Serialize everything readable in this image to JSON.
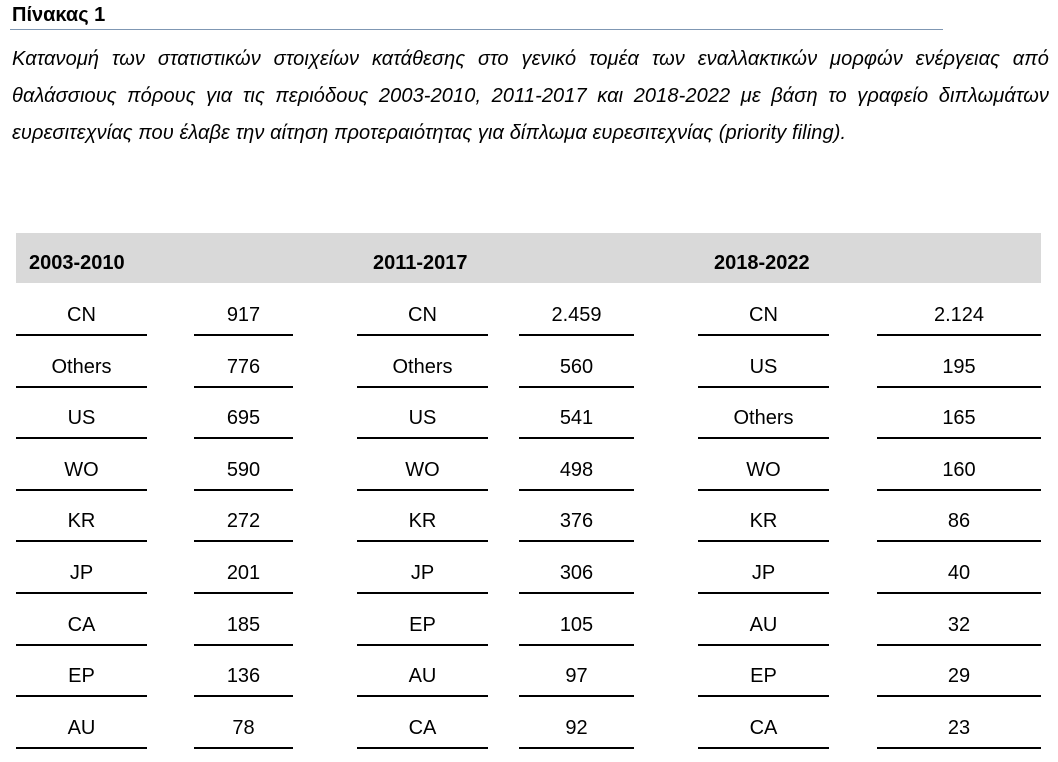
{
  "title": "Πίνακας 1",
  "caption": "Κατανομή των στατιστικών στοιχείων κατάθεσης στο γενικό τομέα των εναλλακτικών μορφών ενέργειας από θαλάσσιους πόρους για τις περιόδους 2003-2010, 2011-2017 και 2018-2022 με βάση το γραφείο διπλωμάτων ευρεσιτεχνίας που έλαβε την αίτηση προτεραιότητας για δίπλωμα ευρεσιτεχνίας (priority filing).",
  "colors": {
    "header_band": "#d9d9d9",
    "title_rule": "#7f97b3"
  },
  "table": {
    "periods": [
      "2003-2010",
      "2011-2017",
      "2018-2022"
    ],
    "groups": [
      {
        "rows": [
          {
            "office": "CN",
            "count": "917"
          },
          {
            "office": "Others",
            "count": "776"
          },
          {
            "office": "US",
            "count": "695"
          },
          {
            "office": "WO",
            "count": "590"
          },
          {
            "office": "KR",
            "count": "272"
          },
          {
            "office": "JP",
            "count": "201"
          },
          {
            "office": "CA",
            "count": "185"
          },
          {
            "office": "EP",
            "count": "136"
          },
          {
            "office": "AU",
            "count": "78"
          }
        ]
      },
      {
        "rows": [
          {
            "office": "CN",
            "count": "2.459"
          },
          {
            "office": "Others",
            "count": "560"
          },
          {
            "office": "US",
            "count": "541"
          },
          {
            "office": "WO",
            "count": "498"
          },
          {
            "office": "KR",
            "count": "376"
          },
          {
            "office": "JP",
            "count": "306"
          },
          {
            "office": "EP",
            "count": "105"
          },
          {
            "office": "AU",
            "count": "97"
          },
          {
            "office": "CA",
            "count": "92"
          }
        ]
      },
      {
        "rows": [
          {
            "office": "CN",
            "count": "2.124"
          },
          {
            "office": "US",
            "count": "195"
          },
          {
            "office": "Others",
            "count": "165"
          },
          {
            "office": "WO",
            "count": "160"
          },
          {
            "office": "KR",
            "count": "86"
          },
          {
            "office": "JP",
            "count": "40"
          },
          {
            "office": "AU",
            "count": "32"
          },
          {
            "office": "EP",
            "count": "29"
          },
          {
            "office": "CA",
            "count": "23"
          }
        ]
      }
    ]
  }
}
